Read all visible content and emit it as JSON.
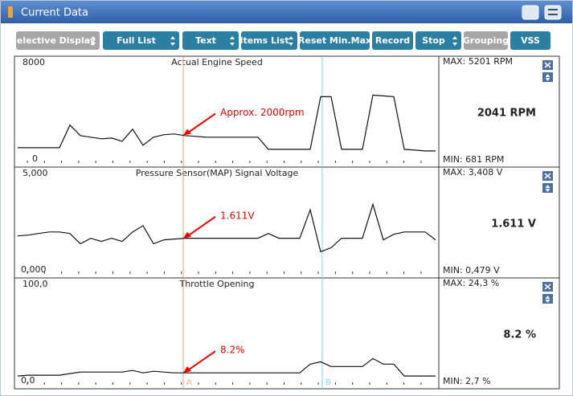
{
  "window": {
    "title": "Current Data"
  },
  "toolbar": [
    {
      "label": "Selective Display",
      "color": "#a6a6a6"
    },
    {
      "label": "Full List",
      "color": "#2b7fa3"
    },
    {
      "label": "Text",
      "color": "#2b7fa3"
    },
    {
      "label": "Items List",
      "color": "#2b7fa3"
    },
    {
      "label": "Reset Min.Max",
      "color": "#2b7fa3"
    },
    {
      "label": "Record",
      "color": "#2b7fa3"
    },
    {
      "label": "Stop",
      "color": "#2b7fa3"
    },
    {
      "label": "Grouping",
      "color": "#a6a6a6"
    },
    {
      "label": "VSS",
      "color": "#2b7fa3"
    }
  ],
  "cursors": [
    "A",
    "B"
  ],
  "panels": [
    {
      "title": "Actual Engine Speed",
      "ymax": 8000,
      "ymin": 0,
      "max_text": "MAX:  5201 RPM",
      "min_text": "MIN:   681 RPM",
      "current": "2041 RPM",
      "annotation": "Approx. 2000rpm",
      "trace": [
        920,
        920,
        920,
        920,
        920,
        2750,
        1900,
        1770,
        1640,
        1700,
        1440,
        2420,
        1110,
        1770,
        1970,
        2030,
        1900,
        1840,
        1770,
        1770,
        1770,
        1770,
        1770,
        1770,
        790,
        790,
        790,
        790,
        790,
        5050,
        5050,
        790,
        790,
        790,
        5180,
        5110,
        5050,
        790,
        720,
        660,
        660
      ]
    },
    {
      "title": "Pressure Sensor(MAP) Signal Voltage",
      "ymax": {
        "value": 5,
        "label": "5,000"
      },
      "ymin": {
        "value": 0,
        "label": "0,000"
      },
      "max_text": "MAX: 3,408 V",
      "min_text": "MIN: 0,479 V",
      "current": "1.611  V",
      "annotation": "1.611V",
      "trace": [
        1.72,
        1.76,
        1.84,
        1.92,
        1.92,
        1.84,
        1.32,
        1.6,
        1.44,
        1.6,
        1.44,
        1.92,
        2.24,
        1.32,
        1.52,
        1.56,
        1.6,
        1.6,
        1.6,
        1.6,
        1.6,
        1.6,
        1.6,
        1.6,
        1.84,
        1.6,
        1.6,
        1.6,
        3.04,
        0.92,
        1.12,
        1.6,
        1.6,
        1.6,
        3.32,
        1.52,
        1.8,
        1.92,
        1.92,
        1.92,
        1.52
      ]
    },
    {
      "title": "Throttle Opening",
      "ymax": {
        "value": 100,
        "label": "100,0"
      },
      "ymin": {
        "value": 0,
        "label": "0,0"
      },
      "max_text": "MAX:  24,3 %",
      "min_text": "MIN:   2,7 %",
      "current": "8.2  %",
      "annotation": "8.2%",
      "trace": [
        4.8,
        5.6,
        5.6,
        5.6,
        5.6,
        7.2,
        8.8,
        8.8,
        8.8,
        8.8,
        8.8,
        10.4,
        8,
        9.6,
        8.8,
        8,
        8,
        8,
        8,
        8,
        8,
        8,
        8,
        8,
        8,
        8,
        8,
        8,
        16.8,
        19.2,
        14.4,
        14.4,
        14.4,
        14.4,
        22.4,
        16.8,
        16.8,
        4.8,
        4.8,
        4.8,
        4.8
      ]
    }
  ]
}
